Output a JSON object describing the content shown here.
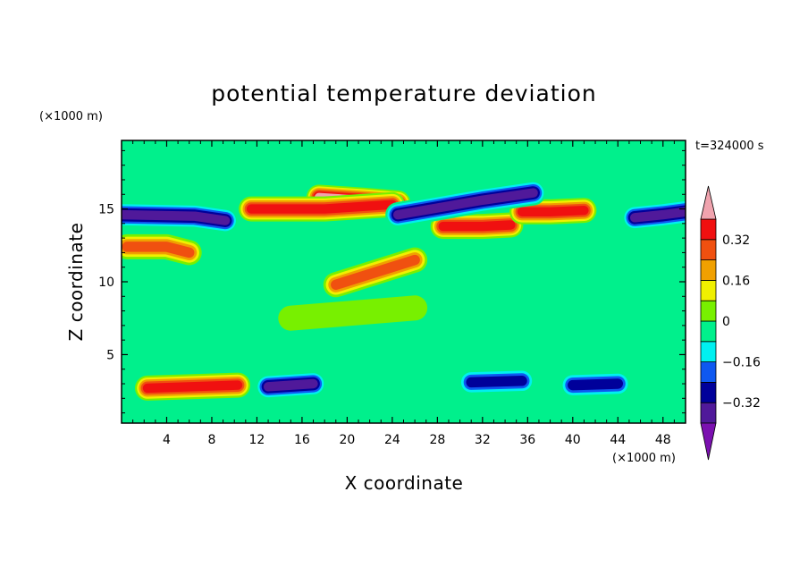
{
  "chart_data": {
    "type": "heatmap",
    "title": "potential temperature deviation",
    "xlabel": "X coordinate",
    "ylabel": "Z coordinate",
    "x_unit": "(×1000 m)",
    "y_unit": "(×1000 m)",
    "time_label": "t=324000 s",
    "xlim": [
      0,
      50
    ],
    "ylim": [
      0.3,
      19.7
    ],
    "x_ticks": [
      4,
      8,
      12,
      16,
      20,
      24,
      28,
      32,
      36,
      40,
      44,
      48
    ],
    "y_ticks": [
      5,
      10,
      15
    ],
    "colorbar": {
      "levels": [
        -0.4,
        -0.32,
        -0.24,
        -0.16,
        -0.08,
        0,
        0.08,
        0.16,
        0.24,
        0.32,
        0.4
      ],
      "labeled": [
        0.32,
        0.16,
        0,
        -0.16,
        -0.32
      ],
      "tick_labels": [
        "0.32",
        "0.16",
        "0",
        "−0.16",
        "−0.32"
      ],
      "colors": [
        "#7b10b0",
        "#50199a",
        "#00009a",
        "#0e58f0",
        "#00f0f0",
        "#00f08c",
        "#78f000",
        "#f0f000",
        "#f0a000",
        "#f05010",
        "#f01010",
        "#f0a3ae"
      ],
      "extend": "both"
    },
    "features": [
      {
        "x": [
          0,
          6.5,
          9.2
        ],
        "z": [
          14.6,
          14.5,
          14.2
        ],
        "value": -0.36
      },
      {
        "x": [
          17.5,
          21.5,
          24.5
        ],
        "z": [
          15.8,
          15.6,
          15.4
        ],
        "value": 0.44
      },
      {
        "x": [
          11.5,
          18,
          24
        ],
        "z": [
          15.0,
          15.0,
          15.3
        ],
        "value": 0.42
      },
      {
        "x": [
          28.5,
          32,
          34.5
        ],
        "z": [
          13.8,
          13.8,
          13.9
        ],
        "value": 0.42
      },
      {
        "x": [
          35.5,
          38,
          41
        ],
        "z": [
          14.8,
          14.8,
          14.9
        ],
        "value": 0.38
      },
      {
        "x": [
          24.5,
          32,
          36.5
        ],
        "z": [
          14.6,
          15.6,
          16.1
        ],
        "value": -0.36
      },
      {
        "x": [
          45.5,
          48,
          50
        ],
        "z": [
          14.4,
          14.6,
          14.8
        ],
        "value": -0.36
      },
      {
        "x": [
          0.5,
          4,
          6
        ],
        "z": [
          12.4,
          12.4,
          12.0
        ],
        "value": 0.3
      },
      {
        "x": [
          2.3,
          10.3
        ],
        "z": [
          2.7,
          2.9
        ],
        "value": 0.42
      },
      {
        "x": [
          13,
          17
        ],
        "z": [
          2.8,
          3.0
        ],
        "value": -0.36
      },
      {
        "x": [
          31,
          35.5
        ],
        "z": [
          3.1,
          3.2
        ],
        "value": -0.3
      },
      {
        "x": [
          40,
          44
        ],
        "z": [
          2.9,
          3.0
        ],
        "value": -0.34
      },
      {
        "x": [
          15,
          26
        ],
        "z": [
          7.5,
          8.2
        ],
        "value": 0.06
      },
      {
        "x": [
          19,
          26
        ],
        "z": [
          9.8,
          11.5
        ],
        "value": 0.3
      }
    ]
  }
}
